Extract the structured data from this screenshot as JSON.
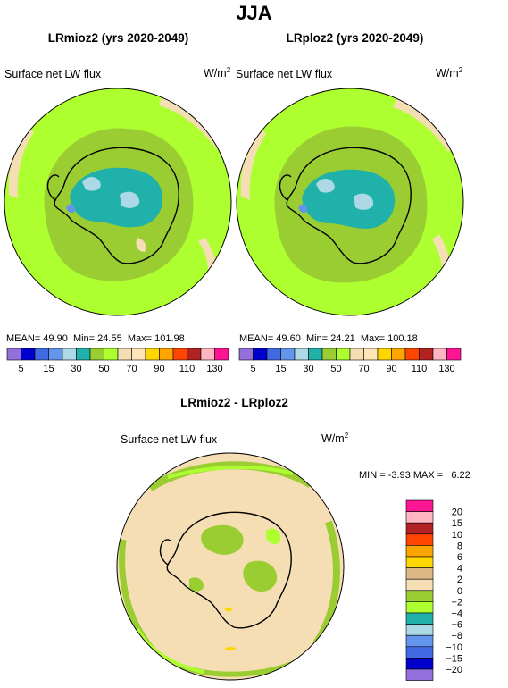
{
  "figure": {
    "season": "JJA"
  },
  "panels": [
    {
      "title": "LRmioz2 (yrs 2020-2049)",
      "variable": "Surface net LW flux",
      "units": "W/m",
      "units_sup": "2",
      "stats": {
        "mean_label": "MEAN=",
        "mean": "49.90",
        "min_label": "Min=",
        "min": "24.55",
        "max_label": "Max=",
        "max": "101.98"
      }
    },
    {
      "title": "LRploz2 (yrs 2020-2049)",
      "variable": "Surface net LW flux",
      "units": "W/m",
      "units_sup": "2",
      "stats": {
        "mean_label": "MEAN=",
        "mean": "49.60",
        "min_label": "Min=",
        "min": "24.21",
        "max_label": "Max=",
        "max": "100.18"
      }
    }
  ],
  "abs_colorbar": {
    "colors": [
      "#9370db",
      "#0000cd",
      "#4169e1",
      "#6495ed",
      "#add8e6",
      "#20b2aa",
      "#9acd32",
      "#adff2f",
      "#f5deb3",
      "#ffe4b5",
      "#ffd700",
      "#ffa500",
      "#ff4500",
      "#b22222",
      "#ffb6c1",
      "#ff1493"
    ],
    "tick_labels": [
      "5",
      "15",
      "30",
      "50",
      "70",
      "90",
      "110",
      "130"
    ],
    "tick_after_box": [
      1,
      3,
      5,
      7,
      9,
      11,
      13,
      15
    ]
  },
  "diff_panel": {
    "title": "LRmioz2 - LRploz2",
    "variable": "Surface net LW flux",
    "units": "W/m",
    "units_sup": "2",
    "stats": {
      "min_label": "MIN =",
      "min": "-3.93",
      "max_label": "MAX =",
      "max": "6.22"
    }
  },
  "diff_colorbar": {
    "colors": [
      "#ff1493",
      "#ffb6c1",
      "#b22222",
      "#ff4500",
      "#ffa500",
      "#ffd700",
      "#deb887",
      "#f5deb3",
      "#9acd32",
      "#adff2f",
      "#20b2aa",
      "#add8e6",
      "#6495ed",
      "#4169e1",
      "#0000cd",
      "#9370db"
    ],
    "tick_labels": [
      "20",
      "15",
      "10",
      "8",
      "6",
      "4",
      "2",
      "0",
      "−2",
      "−4",
      "−6",
      "−8",
      "−10",
      "−15",
      "−20"
    ]
  },
  "colors": {
    "ocean_base": "#9acd32",
    "ocean_light": "#adff2f",
    "ice_shelf": "#f5deb3",
    "interior_teal": "#20b2aa",
    "interior_light": "#add8e6",
    "interior_blue": "#6495ed",
    "diff_base": "#f5deb3",
    "diff_green": "#9acd32",
    "diff_light": "#adff2f"
  }
}
